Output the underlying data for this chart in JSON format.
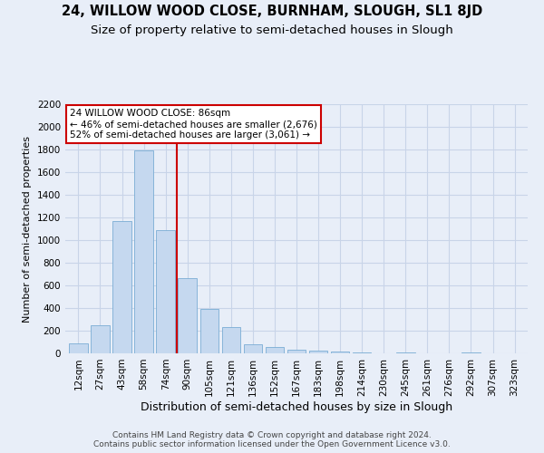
{
  "title": "24, WILLOW WOOD CLOSE, BURNHAM, SLOUGH, SL1 8JD",
  "subtitle": "Size of property relative to semi-detached houses in Slough",
  "xlabel": "Distribution of semi-detached houses by size in Slough",
  "ylabel": "Number of semi-detached properties",
  "categories": [
    "12sqm",
    "27sqm",
    "43sqm",
    "58sqm",
    "74sqm",
    "90sqm",
    "105sqm",
    "121sqm",
    "136sqm",
    "152sqm",
    "167sqm",
    "183sqm",
    "198sqm",
    "214sqm",
    "230sqm",
    "245sqm",
    "261sqm",
    "276sqm",
    "292sqm",
    "307sqm",
    "323sqm"
  ],
  "values": [
    90,
    245,
    1165,
    1790,
    1085,
    665,
    395,
    230,
    80,
    60,
    35,
    25,
    15,
    10,
    0,
    10,
    0,
    0,
    10,
    0,
    0
  ],
  "bar_color": "#c5d8ef",
  "bar_edge_color": "#7aadd4",
  "vline_index": 4.5,
  "property_size": "86sqm",
  "pct_smaller": 46,
  "count_smaller": 2676,
  "pct_larger": 52,
  "count_larger": 3061,
  "annotation_box_color": "#ffffff",
  "annotation_box_edge": "#cc0000",
  "vline_color": "#cc0000",
  "ylim": [
    0,
    2200
  ],
  "yticks": [
    0,
    200,
    400,
    600,
    800,
    1000,
    1200,
    1400,
    1600,
    1800,
    2000,
    2200
  ],
  "grid_color": "#c8d4e8",
  "background_color": "#e8eef8",
  "footer": "Contains HM Land Registry data © Crown copyright and database right 2024.\nContains public sector information licensed under the Open Government Licence v3.0.",
  "title_fontsize": 10.5,
  "subtitle_fontsize": 9.5,
  "xlabel_fontsize": 9,
  "ylabel_fontsize": 8,
  "annotation_fontsize": 7.5,
  "tick_fontsize": 7.5,
  "footer_fontsize": 6.5
}
